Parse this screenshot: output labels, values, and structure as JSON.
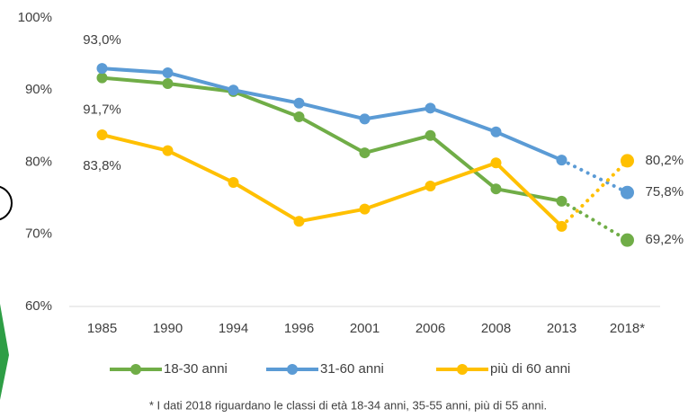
{
  "chart_data": {
    "type": "line",
    "categories": [
      "1985",
      "1990",
      "1994",
      "1996",
      "2001",
      "2006",
      "2008",
      "2013",
      "2018*"
    ],
    "series": [
      {
        "name": "18-30 anni",
        "color": "#70ad47",
        "values": [
          91.7,
          90.9,
          89.8,
          86.3,
          81.3,
          83.7,
          76.3,
          74.6,
          69.2
        ],
        "value_labels": [
          "91,7%",
          null,
          null,
          null,
          null,
          null,
          null,
          null,
          "69,2%"
        ]
      },
      {
        "name": "31-60 anni",
        "color": "#5b9bd5",
        "values": [
          93.0,
          92.4,
          90.0,
          88.2,
          86.0,
          87.5,
          84.2,
          80.3,
          75.8
        ],
        "value_labels": [
          "93,0%",
          null,
          null,
          null,
          null,
          null,
          null,
          null,
          "75,8%"
        ]
      },
      {
        "name": "più di 60 anni",
        "color": "#ffc000",
        "values": [
          83.8,
          81.6,
          77.2,
          71.8,
          73.5,
          76.7,
          79.9,
          71.1,
          80.2
        ],
        "value_labels": [
          "83,8%",
          null,
          null,
          null,
          null,
          null,
          null,
          null,
          "80,2%"
        ]
      }
    ],
    "ylim": [
      60,
      100
    ],
    "yticks": [
      {
        "value": 60,
        "label": "60%"
      },
      {
        "value": 70,
        "label": "70%"
      },
      {
        "value": 80,
        "label": "80%"
      },
      {
        "value": 90,
        "label": "90%"
      },
      {
        "value": 100,
        "label": "100%"
      }
    ],
    "dashed_last_segment": true,
    "legend": "bottom",
    "footnote": "* I dati 2018 riguardano le classi di età 18-34 anni, 35-55 anni, più di 55 anni."
  }
}
